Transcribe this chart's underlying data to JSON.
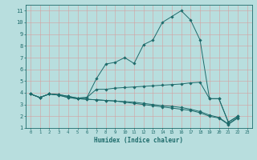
{
  "xlabel": "Humidex (Indice chaleur)",
  "xlim": [
    -0.5,
    23.5
  ],
  "ylim": [
    1,
    11.5
  ],
  "xticks": [
    0,
    1,
    2,
    3,
    4,
    5,
    6,
    7,
    8,
    9,
    10,
    11,
    12,
    13,
    14,
    15,
    16,
    17,
    18,
    19,
    20,
    21,
    22,
    23
  ],
  "yticks": [
    1,
    2,
    3,
    4,
    5,
    6,
    7,
    8,
    9,
    10,
    11
  ],
  "bg_color": "#b8dede",
  "line_color": "#1e6b6b",
  "grid_color": "#d4a0a0",
  "curves": [
    {
      "x": [
        0,
        1,
        2,
        3,
        4,
        5,
        6,
        7,
        8,
        9,
        10,
        11,
        12,
        13,
        14,
        15,
        16,
        17,
        18,
        19,
        20,
        21,
        22
      ],
      "y": [
        3.9,
        3.6,
        3.9,
        3.85,
        3.7,
        3.55,
        3.6,
        5.2,
        6.45,
        6.6,
        7.0,
        6.5,
        8.1,
        8.5,
        10.0,
        10.5,
        11.0,
        10.2,
        8.5,
        3.5,
        3.5,
        1.5,
        2.0
      ]
    },
    {
      "x": [
        0,
        1,
        2,
        3,
        4,
        5,
        6,
        7,
        8,
        9,
        10,
        11,
        12,
        13,
        14,
        15,
        16,
        17,
        18,
        19,
        20,
        21,
        22
      ],
      "y": [
        3.9,
        3.6,
        3.9,
        3.85,
        3.7,
        3.55,
        3.6,
        4.3,
        4.3,
        4.4,
        4.45,
        4.5,
        4.55,
        4.6,
        4.65,
        4.7,
        4.75,
        4.85,
        4.9,
        3.5,
        3.5,
        1.5,
        2.0
      ]
    },
    {
      "x": [
        0,
        1,
        2,
        3,
        4,
        5,
        6,
        7,
        8,
        9,
        10,
        11,
        12,
        13,
        14,
        15,
        16,
        17,
        18,
        19,
        20,
        21,
        22
      ],
      "y": [
        3.9,
        3.6,
        3.9,
        3.8,
        3.6,
        3.5,
        3.45,
        3.4,
        3.35,
        3.3,
        3.25,
        3.2,
        3.1,
        3.0,
        2.9,
        2.85,
        2.75,
        2.6,
        2.4,
        2.1,
        1.9,
        1.35,
        1.9
      ]
    },
    {
      "x": [
        0,
        1,
        2,
        3,
        4,
        5,
        6,
        7,
        8,
        9,
        10,
        11,
        12,
        13,
        14,
        15,
        16,
        17,
        18,
        19,
        20,
        21,
        22
      ],
      "y": [
        3.9,
        3.6,
        3.9,
        3.8,
        3.6,
        3.5,
        3.45,
        3.4,
        3.35,
        3.3,
        3.2,
        3.1,
        3.0,
        2.9,
        2.8,
        2.7,
        2.6,
        2.5,
        2.3,
        2.0,
        1.85,
        1.3,
        1.85
      ]
    }
  ]
}
